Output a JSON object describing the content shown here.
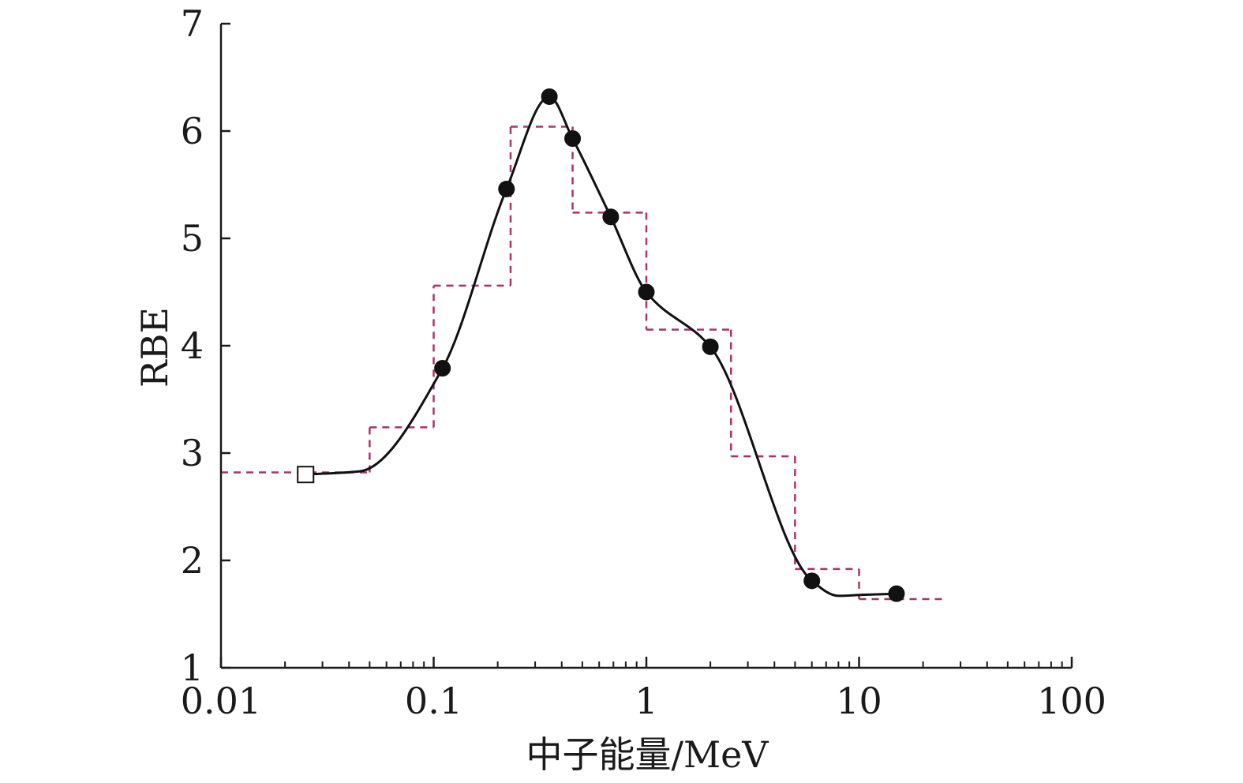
{
  "chart_data": {
    "type": "line",
    "title": "",
    "xlabel": "中子能量/MeV",
    "ylabel": "RBE",
    "x_scale": "log",
    "xlim": [
      0.01,
      100
    ],
    "ylim": [
      1,
      7
    ],
    "x_ticks": [
      0.01,
      0.1,
      1,
      10,
      100
    ],
    "x_tick_labels": [
      "0.01",
      "0.1",
      "1",
      "10",
      "100"
    ],
    "y_ticks": [
      1,
      2,
      3,
      4,
      5,
      6,
      7
    ],
    "y_tick_labels": [
      "1",
      "2",
      "3",
      "4",
      "5",
      "6",
      "7"
    ],
    "grid": false,
    "colors": {
      "curve": "#111111",
      "step": "#a8336a",
      "axis": "#1a1a1a"
    },
    "series": [
      {
        "type": "line-markers",
        "marker": "filled-circle",
        "points": [
          {
            "x": 0.11,
            "y": 3.79
          },
          {
            "x": 0.22,
            "y": 5.46
          },
          {
            "x": 0.35,
            "y": 6.32
          },
          {
            "x": 0.45,
            "y": 5.93
          },
          {
            "x": 0.68,
            "y": 5.2
          },
          {
            "x": 1.0,
            "y": 4.5
          },
          {
            "x": 2.0,
            "y": 3.99
          },
          {
            "x": 6.0,
            "y": 1.81
          },
          {
            "x": 15.0,
            "y": 1.69
          }
        ]
      },
      {
        "type": "marker",
        "marker": "open-square",
        "points": [
          {
            "x": 0.025,
            "y": 2.8
          }
        ]
      },
      {
        "type": "step",
        "style": "dashed",
        "segments": [
          {
            "x0": 0.01,
            "x1": 0.05,
            "y": 2.82
          },
          {
            "x0": 0.05,
            "x1": 0.1,
            "y": 3.24
          },
          {
            "x0": 0.1,
            "x1": 0.23,
            "y": 4.56
          },
          {
            "x0": 0.23,
            "x1": 0.45,
            "y": 6.04
          },
          {
            "x0": 0.45,
            "x1": 1.0,
            "y": 5.24
          },
          {
            "x0": 1.0,
            "x1": 2.5,
            "y": 4.15
          },
          {
            "x0": 2.5,
            "x1": 5.0,
            "y": 2.97
          },
          {
            "x0": 5.0,
            "x1": 10.0,
            "y": 1.92
          },
          {
            "x0": 10.0,
            "x1": 25.0,
            "y": 1.64
          }
        ]
      }
    ]
  }
}
